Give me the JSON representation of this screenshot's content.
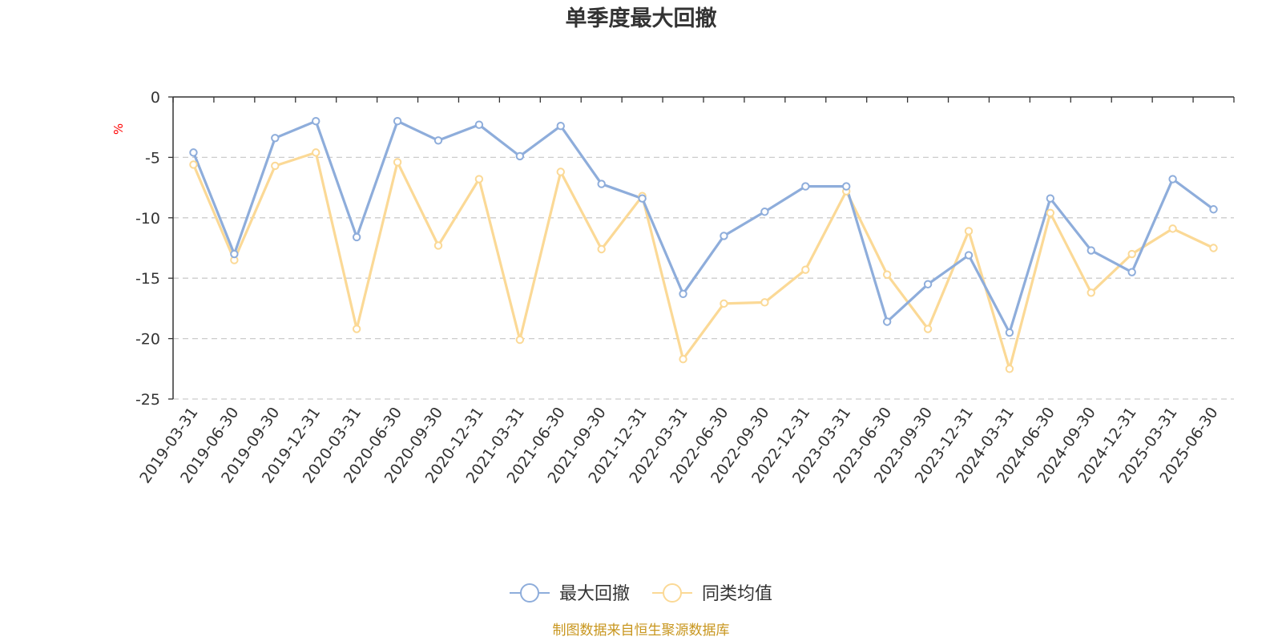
{
  "chart_data": {
    "type": "line",
    "title": "单季度最大回撤",
    "ylabel": "%",
    "ylim": [
      -25,
      0
    ],
    "yticks": [
      0,
      -5,
      -10,
      -15,
      -20,
      -25
    ],
    "grid": true,
    "legend_position": "bottom",
    "categories": [
      "2019-03-31",
      "2019-06-30",
      "2019-09-30",
      "2019-12-31",
      "2020-03-31",
      "2020-06-30",
      "2020-09-30",
      "2020-12-31",
      "2021-03-31",
      "2021-06-30",
      "2021-09-30",
      "2021-12-31",
      "2022-03-31",
      "2022-06-30",
      "2022-09-30",
      "2022-12-31",
      "2023-03-31",
      "2023-06-30",
      "2023-09-30",
      "2023-12-31",
      "2024-03-31",
      "2024-06-30",
      "2024-09-30",
      "2024-12-31",
      "2025-03-31",
      "2025-06-30"
    ],
    "series": [
      {
        "name": "最大回撤",
        "color": "#8eaddb",
        "values": [
          -4.6,
          -13.0,
          -3.4,
          -2.0,
          -11.6,
          -2.0,
          -3.6,
          -2.3,
          -4.9,
          -2.4,
          -7.2,
          -8.4,
          -16.3,
          -11.5,
          -9.5,
          -7.4,
          -7.4,
          -18.6,
          -15.5,
          -13.1,
          -19.5,
          -8.4,
          -12.7,
          -14.5,
          -6.8,
          -9.3
        ]
      },
      {
        "name": "同类均值",
        "color": "#fbd996",
        "values": [
          -5.6,
          -13.5,
          -5.7,
          -4.6,
          -19.2,
          -5.4,
          -12.3,
          -6.8,
          -20.1,
          -6.2,
          -12.6,
          -8.2,
          -21.7,
          -17.1,
          -17.0,
          -14.3,
          -7.8,
          -14.7,
          -19.2,
          -11.1,
          -22.5,
          -9.6,
          -16.2,
          -13.0,
          -10.9,
          -12.5
        ]
      }
    ]
  },
  "source": "制图数据来自恒生聚源数据库",
  "colors": {
    "axis": "#333333",
    "grid": "#cccccc",
    "unit": "#ff0000",
    "source": "#c8961e"
  }
}
